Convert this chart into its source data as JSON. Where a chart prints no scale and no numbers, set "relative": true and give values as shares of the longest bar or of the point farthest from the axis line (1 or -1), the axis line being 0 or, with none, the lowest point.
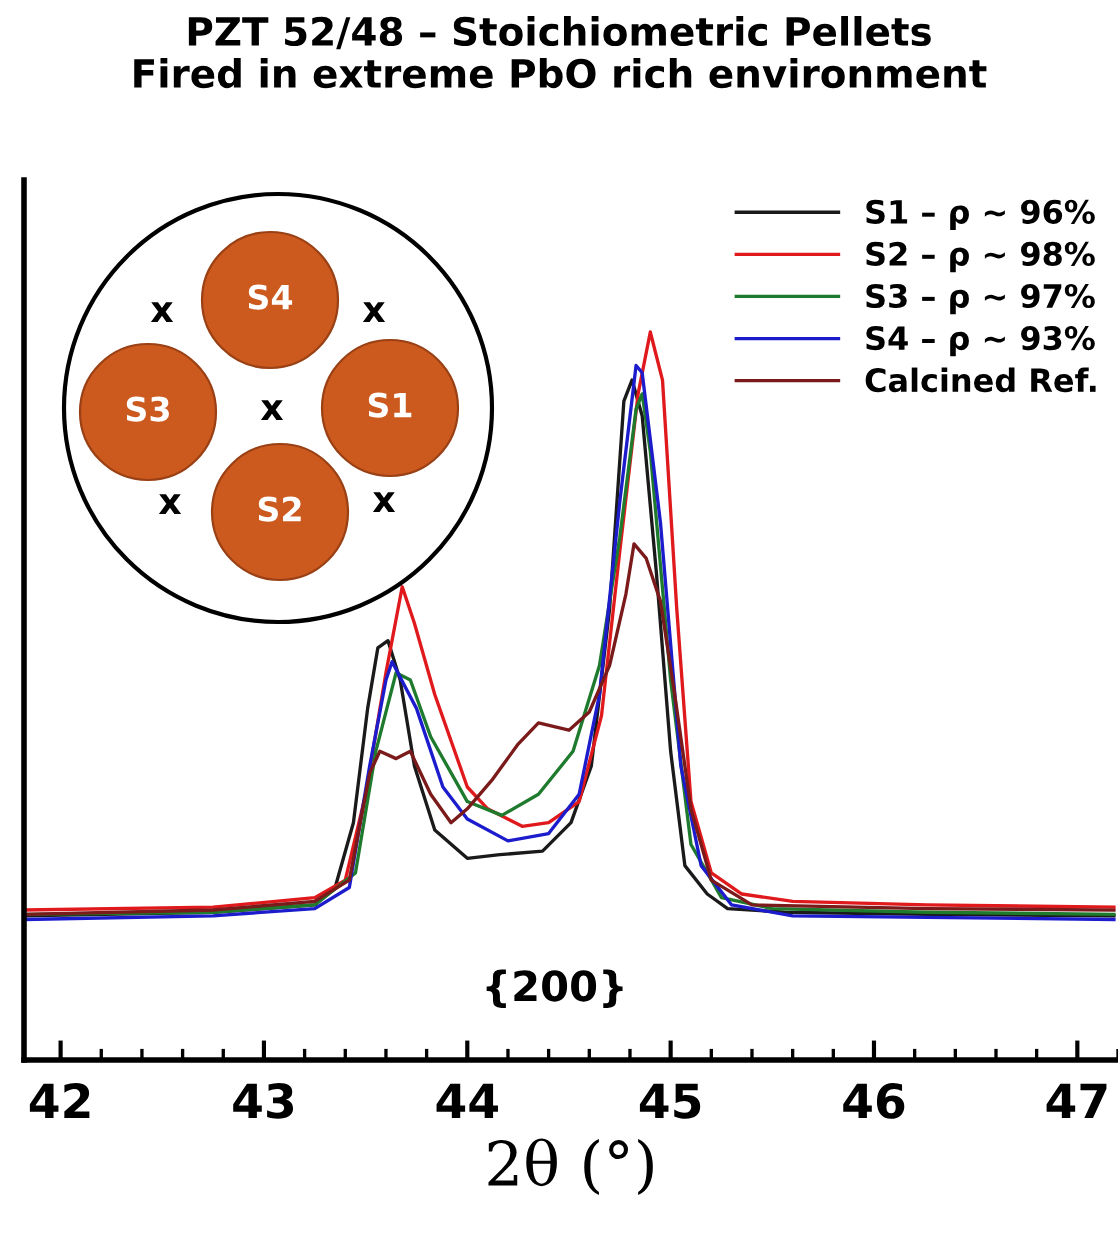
{
  "chart_data": {
    "type": "line",
    "title": "PZT 52/48 – Stoichiometric Pellets\nFired in extreme PbO rich environment",
    "xlabel": "2θ (°)",
    "relative": true,
    "xlim": [
      41.82,
      47.2
    ],
    "xticks": [
      42,
      43,
      44,
      45,
      46,
      47
    ],
    "legend": "top right",
    "grid": false,
    "annotations": [
      "{200}",
      "S4",
      "S3",
      "S1",
      "S2",
      "x",
      "x",
      "x",
      "x",
      "x"
    ],
    "series": [
      {
        "name": "S1 – ρ ~ 96%",
        "color": "#1a1a1a",
        "x": [
          41.82,
          42.75,
          43.25,
          43.35,
          43.44,
          43.51,
          43.56,
          43.61,
          43.67,
          43.74,
          43.84,
          44.0,
          44.16,
          44.37,
          44.51,
          44.61,
          44.7,
          44.77,
          44.81,
          44.86,
          44.93,
          45.0,
          45.07,
          45.18,
          45.28,
          45.56,
          46.26,
          47.18
        ],
        "values": [
          0.198,
          0.203,
          0.213,
          0.237,
          0.326,
          0.483,
          0.566,
          0.576,
          0.522,
          0.404,
          0.316,
          0.277,
          0.282,
          0.287,
          0.326,
          0.404,
          0.62,
          0.905,
          0.934,
          0.885,
          0.669,
          0.424,
          0.267,
          0.228,
          0.208,
          0.203,
          0.2,
          0.198
        ]
      },
      {
        "name": "S2 – ρ ~ 98%",
        "color": "#e0191c",
        "x": [
          41.82,
          42.75,
          43.25,
          43.4,
          43.5,
          43.6,
          43.68,
          43.74,
          43.84,
          44.0,
          44.1,
          44.27,
          44.4,
          44.55,
          44.66,
          44.75,
          44.84,
          44.9,
          44.96,
          45.03,
          45.1,
          45.2,
          45.35,
          45.6,
          46.26,
          47.18
        ],
        "values": [
          0.206,
          0.21,
          0.223,
          0.247,
          0.365,
          0.532,
          0.65,
          0.6,
          0.502,
          0.375,
          0.345,
          0.321,
          0.326,
          0.355,
          0.473,
          0.699,
          0.915,
          1.0,
          0.934,
          0.62,
          0.355,
          0.257,
          0.228,
          0.218,
          0.213,
          0.21
        ]
      },
      {
        "name": "S3 – ρ ~ 97%",
        "color": "#1e7a2c",
        "x": [
          41.82,
          42.75,
          43.25,
          43.45,
          43.55,
          43.65,
          43.72,
          43.82,
          44.0,
          44.17,
          44.35,
          44.52,
          44.65,
          44.75,
          44.83,
          44.86,
          44.9,
          45.0,
          45.1,
          45.25,
          45.5,
          46.26,
          47.18
        ],
        "values": [
          0.2,
          0.203,
          0.213,
          0.257,
          0.424,
          0.532,
          0.522,
          0.444,
          0.355,
          0.336,
          0.365,
          0.424,
          0.542,
          0.718,
          0.894,
          0.915,
          0.836,
          0.522,
          0.296,
          0.223,
          0.208,
          0.203,
          0.2
        ]
      },
      {
        "name": "S4 – ρ ~ 93%",
        "color": "#1c1ccc",
        "x": [
          41.82,
          42.75,
          43.25,
          43.42,
          43.52,
          43.6,
          43.63,
          43.75,
          43.88,
          44.0,
          44.2,
          44.4,
          44.55,
          44.65,
          44.75,
          44.83,
          44.86,
          44.95,
          45.05,
          45.15,
          45.3,
          45.6,
          46.26,
          47.18
        ],
        "values": [
          0.193,
          0.198,
          0.208,
          0.237,
          0.404,
          0.522,
          0.547,
          0.483,
          0.375,
          0.331,
          0.301,
          0.311,
          0.365,
          0.502,
          0.767,
          0.954,
          0.944,
          0.738,
          0.404,
          0.267,
          0.213,
          0.198,
          0.196,
          0.193
        ]
      },
      {
        "name": "Calcined Ref.",
        "color": "#7a1a1a",
        "x": [
          41.82,
          42.75,
          43.25,
          43.42,
          43.52,
          43.57,
          43.65,
          43.72,
          43.82,
          43.92,
          44.0,
          44.12,
          44.25,
          44.35,
          44.5,
          44.6,
          44.7,
          44.78,
          44.82,
          44.88,
          44.95,
          45.02,
          45.1,
          45.2,
          45.4,
          46.26,
          47.18
        ],
        "values": [
          0.2,
          0.206,
          0.218,
          0.247,
          0.394,
          0.424,
          0.414,
          0.424,
          0.365,
          0.326,
          0.345,
          0.384,
          0.434,
          0.463,
          0.453,
          0.478,
          0.542,
          0.64,
          0.709,
          0.689,
          0.63,
          0.502,
          0.345,
          0.247,
          0.213,
          0.208,
          0.206
        ]
      }
    ]
  }
}
